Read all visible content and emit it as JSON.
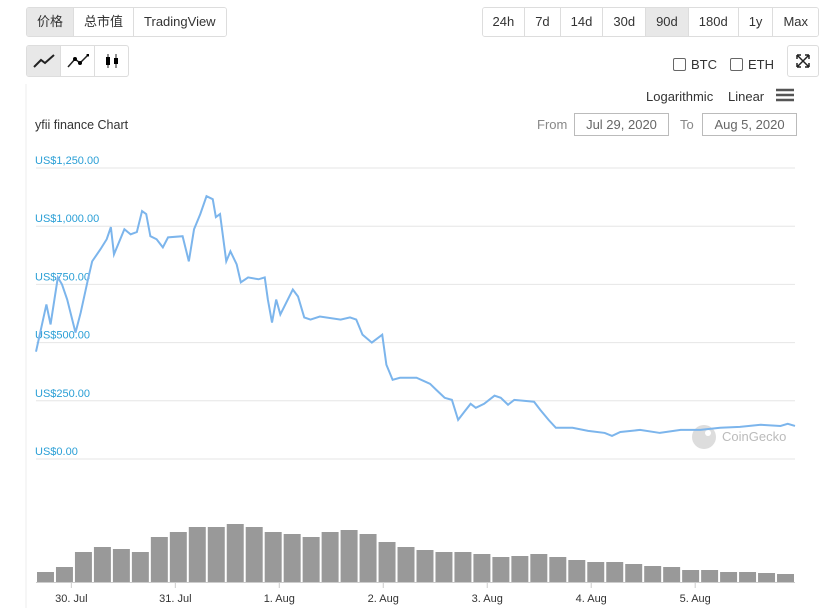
{
  "tabs": [
    "价格",
    "总市值",
    "TradingView"
  ],
  "ranges": [
    "24h",
    "7d",
    "14d",
    "30d",
    "90d",
    "180d",
    "1y",
    "Max"
  ],
  "active_range": 4,
  "compare": [
    "BTC",
    "ETH"
  ],
  "scales": [
    "Logarithmic",
    "Linear"
  ],
  "date_range": {
    "from_label": "From",
    "from": "Jul 29, 2020",
    "to_label": "To",
    "to": "Aug 5, 2020"
  },
  "watermark": "CoinGecko",
  "chart_data": {
    "type": "line",
    "title": "yfii finance Chart",
    "color": "#7cb5ec",
    "x": [
      29.66,
      29.76,
      29.8,
      29.87,
      29.91,
      29.96,
      30.04,
      30.09,
      30.16,
      30.2,
      30.28,
      30.34,
      30.38,
      30.41,
      30.51,
      30.57,
      30.63,
      30.68,
      30.72,
      30.76,
      30.82,
      30.88,
      30.93,
      31.07,
      31.13,
      31.18,
      31.24,
      31.3,
      31.36,
      31.39,
      31.43,
      31.49,
      31.53,
      31.59,
      31.63,
      31.7,
      31.8,
      31.86,
      31.89,
      31.93,
      31.97,
      32.01,
      32.13,
      32.18,
      32.24,
      32.3,
      32.39,
      32.59,
      32.68,
      32.74,
      32.8,
      32.89,
      32.99,
      33.03,
      33.09,
      33.16,
      33.32,
      33.45,
      33.51,
      33.59,
      33.66,
      33.72,
      33.78,
      33.84,
      33.89,
      33.97,
      34.07,
      34.13,
      34.2,
      34.26,
      34.45,
      34.51,
      34.59,
      34.66,
      34.82,
      34.97,
      35.13,
      35.2,
      35.28,
      35.47,
      35.66,
      35.86,
      36.05,
      36.24,
      36.43,
      36.63,
      36.82,
      36.89,
      36.96
    ],
    "values": [
      461,
      664,
      578,
      780,
      750,
      685,
      543,
      629,
      772,
      849,
      901,
      944,
      996,
      879,
      987,
      965,
      975,
      1065,
      1052,
      957,
      944,
      909,
      952,
      957,
      849,
      987,
      1052,
      1129,
      1116,
      1039,
      1052,
      849,
      892,
      836,
      759,
      780,
      772,
      780,
      685,
      586,
      685,
      621,
      728,
      698,
      608,
      599,
      612,
      599,
      608,
      599,
      534,
      500,
      534,
      405,
      340,
      349,
      349,
      323,
      297,
      263,
      254,
      168,
      203,
      237,
      220,
      237,
      272,
      263,
      233,
      254,
      246,
      211,
      168,
      134,
      134,
      121,
      112,
      99,
      116,
      125,
      112,
      125,
      125,
      134,
      138,
      147,
      142,
      151,
      142
    ],
    "xlim": [
      29.66,
      36.96
    ],
    "xticks": [
      {
        "value": 30,
        "label": "30. Jul"
      },
      {
        "value": 31,
        "label": "31. Jul"
      },
      {
        "value": 32,
        "label": "1. Aug"
      },
      {
        "value": 33,
        "label": "2. Aug"
      },
      {
        "value": 34,
        "label": "3. Aug"
      },
      {
        "value": 35,
        "label": "4. Aug"
      },
      {
        "value": 36,
        "label": "5. Aug"
      }
    ],
    "ylim": [
      0,
      1250
    ],
    "yticks": [
      {
        "value": 0,
        "label": "US$0.00"
      },
      {
        "value": 250,
        "label": "US$250.00"
      },
      {
        "value": 500,
        "label": "US$500.00"
      },
      {
        "value": 750,
        "label": "US$750.00"
      },
      {
        "value": 1000,
        "label": "US$1,000.00"
      },
      {
        "value": 1250,
        "label": "US$1,250.00"
      }
    ],
    "grid": true,
    "volume": {
      "color": "#999999",
      "ylim": [
        0,
        60
      ],
      "values": [
        10,
        15,
        30,
        35,
        33,
        30,
        45,
        50,
        55,
        55,
        58,
        55,
        50,
        48,
        45,
        50,
        52,
        48,
        40,
        35,
        32,
        30,
        30,
        28,
        25,
        26,
        28,
        25,
        22,
        20,
        20,
        18,
        16,
        15,
        12,
        12,
        10,
        10,
        9,
        8
      ]
    }
  }
}
